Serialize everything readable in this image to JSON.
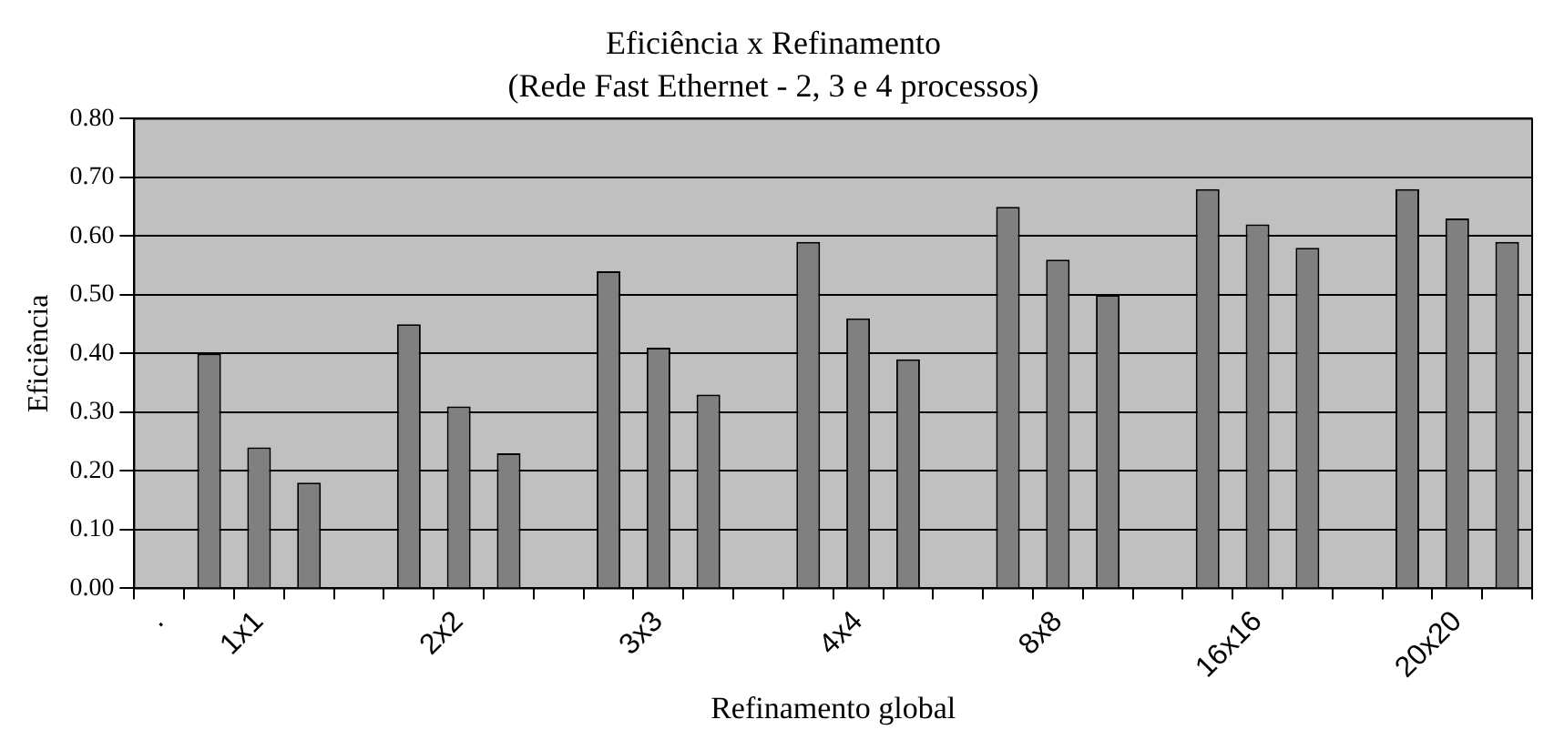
{
  "chart_data": {
    "type": "bar",
    "title": "Eficiência x Refinamento",
    "subtitle": "(Rede Fast Ethernet - 2, 3 e 4 processos)",
    "xlabel": "Refinamento global",
    "ylabel": "Eficiência",
    "categories": [
      ".",
      null,
      "1x1",
      null,
      null,
      null,
      "2x2",
      null,
      null,
      null,
      "3x3",
      null,
      null,
      null,
      "4x4",
      null,
      null,
      null,
      "8x8",
      null,
      null,
      null,
      "16x16",
      null,
      null,
      null,
      "20x20",
      null
    ],
    "values": [
      null,
      0.4,
      0.24,
      0.18,
      null,
      0.45,
      0.31,
      0.23,
      null,
      0.54,
      0.41,
      0.33,
      null,
      0.59,
      0.46,
      0.39,
      null,
      0.65,
      0.56,
      0.5,
      null,
      0.68,
      0.62,
      0.58,
      null,
      0.68,
      0.63,
      0.59
    ],
    "color": "#808080",
    "ylim": [
      0,
      0.8
    ],
    "yticks": [
      {
        "value": 0,
        "label": "0.00"
      },
      {
        "value": 0.1,
        "label": "0.10"
      },
      {
        "value": 0.2,
        "label": "0.20"
      },
      {
        "value": 0.3,
        "label": "0.30"
      },
      {
        "value": 0.4,
        "label": "0.40"
      },
      {
        "value": 0.5,
        "label": "0.50"
      },
      {
        "value": 0.6,
        "label": "0.60"
      },
      {
        "value": 0.7,
        "label": "0.70"
      },
      {
        "value": 0.8,
        "label": "0.80"
      }
    ],
    "grid": "y",
    "legend": false
  }
}
